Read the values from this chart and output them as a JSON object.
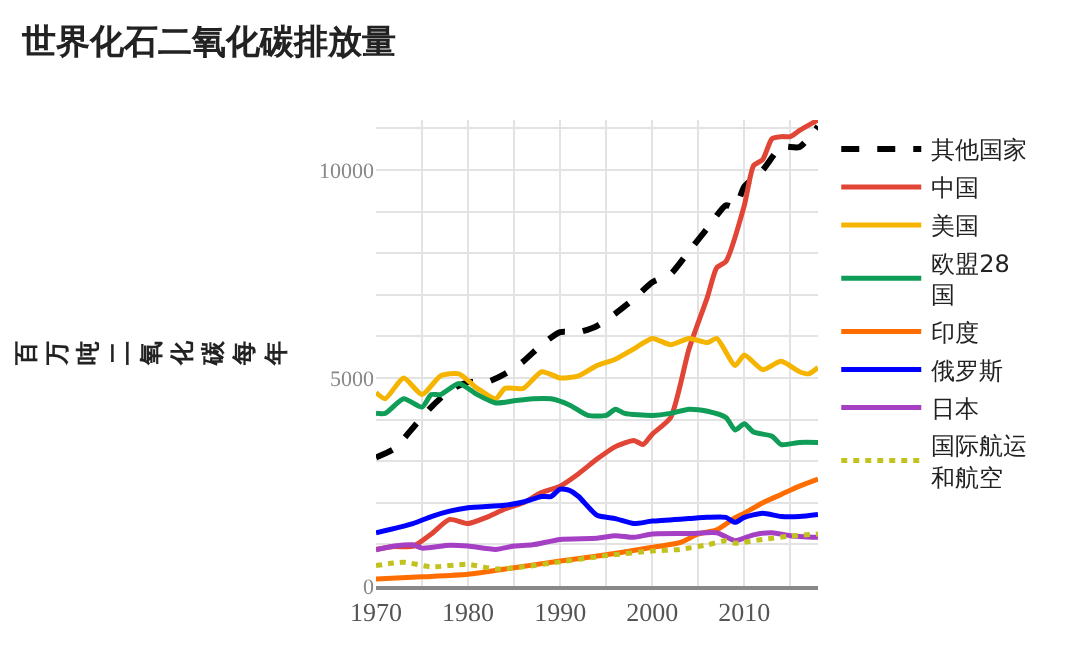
{
  "chart_data": {
    "type": "line",
    "title": "世界化石二氧化碳排放量",
    "ylabel": "百万吨二氧化碳每年",
    "xlim": [
      1970,
      2018
    ],
    "ylim": [
      0,
      11200
    ],
    "xticks": [
      1970,
      {
        "value": 1975,
        "label": null
      },
      1980,
      {
        "value": 1985,
        "label": null
      },
      1990,
      {
        "value": 1995,
        "label": null
      },
      2000,
      {
        "value": 2005,
        "label": null
      },
      2010,
      {
        "value": 2015,
        "label": null
      }
    ],
    "yticks": [
      0,
      {
        "value": 1000,
        "label": null
      },
      {
        "value": 2000,
        "label": null
      },
      {
        "value": 3000,
        "label": null
      },
      {
        "value": 4000,
        "label": null
      },
      5000,
      {
        "value": 6000,
        "label": null
      },
      {
        "value": 7000,
        "label": null
      },
      {
        "value": 8000,
        "label": null
      },
      {
        "value": 9000,
        "label": null
      },
      10000,
      {
        "value": 11000,
        "label": null
      }
    ],
    "grid": true,
    "legend": "right",
    "marker": "none",
    "series": [
      {
        "name": "其他国家",
        "color": "#000000",
        "line_style": "dashed",
        "x": [
          1970,
          1972,
          1974,
          1976,
          1978,
          1980,
          1982,
          1984,
          1986,
          1988,
          1990,
          1992,
          1994,
          1996,
          1998,
          2000,
          2002,
          2004,
          2006,
          2008,
          2009,
          2010,
          2012,
          2014,
          2016,
          2018
        ],
        "values": [
          3090,
          3300,
          3800,
          4300,
          4700,
          4900,
          4900,
          5100,
          5400,
          5800,
          6100,
          6100,
          6250,
          6550,
          6900,
          7300,
          7500,
          8050,
          8600,
          9150,
          9100,
          9600,
          10000,
          10550,
          10550,
          11050
        ]
      },
      {
        "name": "中国",
        "color": "#e04535",
        "line_style": "solid",
        "x": [
          1970,
          1972,
          1974,
          1976,
          1978,
          1980,
          1982,
          1984,
          1986,
          1988,
          1990,
          1992,
          1994,
          1996,
          1998,
          1999,
          2000,
          2002,
          2004,
          2006,
          2007,
          2008,
          2010,
          2011,
          2012,
          2013,
          2014,
          2015,
          2016,
          2018
        ],
        "values": [
          880,
          950,
          950,
          1250,
          1600,
          1500,
          1650,
          1850,
          2000,
          2250,
          2400,
          2700,
          3050,
          3350,
          3500,
          3400,
          3650,
          4050,
          5700,
          6950,
          7650,
          7800,
          9150,
          10100,
          10250,
          10750,
          10800,
          10800,
          10950,
          11200
        ]
      },
      {
        "name": "美国",
        "color": "#f5b400",
        "line_style": "solid",
        "x": [
          1970,
          1971,
          1973,
          1975,
          1977,
          1979,
          1981,
          1983,
          1984,
          1986,
          1988,
          1990,
          1992,
          1994,
          1996,
          1998,
          2000,
          2002,
          2004,
          2006,
          2007,
          2009,
          2010,
          2012,
          2014,
          2016,
          2017,
          2018
        ],
        "values": [
          4650,
          4500,
          5000,
          4600,
          5050,
          5100,
          4750,
          4500,
          4750,
          4750,
          5150,
          5000,
          5050,
          5300,
          5450,
          5700,
          5950,
          5800,
          5950,
          5850,
          5950,
          5300,
          5550,
          5200,
          5400,
          5150,
          5100,
          5250
        ]
      },
      {
        "name": "欧盟28国",
        "color": "#0f9d58",
        "line_style": "solid",
        "x": [
          1970,
          1971,
          1973,
          1975,
          1976,
          1977,
          1979,
          1981,
          1983,
          1985,
          1987,
          1989,
          1991,
          1993,
          1995,
          1996,
          1997,
          2000,
          2002,
          2004,
          2006,
          2008,
          2009,
          2010,
          2011,
          2013,
          2014,
          2016,
          2018
        ],
        "values": [
          4150,
          4150,
          4500,
          4300,
          4600,
          4600,
          4870,
          4600,
          4400,
          4450,
          4500,
          4500,
          4350,
          4100,
          4100,
          4250,
          4150,
          4100,
          4150,
          4250,
          4200,
          4050,
          3750,
          3900,
          3700,
          3600,
          3400,
          3450,
          3450
        ]
      },
      {
        "name": "印度",
        "color": "#ff6d00",
        "line_style": "solid",
        "x": [
          1970,
          1975,
          1980,
          1985,
          1990,
          1995,
          2000,
          2003,
          2005,
          2007,
          2009,
          2010,
          2012,
          2014,
          2016,
          2018
        ],
        "values": [
          170,
          220,
          280,
          440,
          600,
          750,
          930,
          1040,
          1250,
          1350,
          1640,
          1750,
          2000,
          2200,
          2400,
          2570
        ]
      },
      {
        "name": "俄罗斯",
        "color": "#0000ff",
        "line_style": "solid",
        "x": [
          1970,
          1974,
          1976,
          1978,
          1980,
          1984,
          1986,
          1988,
          1989,
          1990,
          1991,
          1992,
          1994,
          1996,
          1998,
          2000,
          2004,
          2006,
          2008,
          2009,
          2010,
          2012,
          2014,
          2016,
          2018
        ],
        "values": [
          1280,
          1500,
          1670,
          1800,
          1880,
          1940,
          2020,
          2150,
          2150,
          2330,
          2300,
          2150,
          1700,
          1620,
          1500,
          1560,
          1620,
          1650,
          1650,
          1530,
          1650,
          1750,
          1670,
          1670,
          1720
        ]
      },
      {
        "name": "日本",
        "color": "#a53fc3",
        "line_style": "solid",
        "x": [
          1970,
          1972,
          1974,
          1975,
          1978,
          1980,
          1983,
          1985,
          1987,
          1990,
          1994,
          1996,
          1998,
          2000,
          2004,
          2007,
          2009,
          2011,
          2013,
          2015,
          2018
        ],
        "values": [
          870,
          960,
          990,
          910,
          980,
          960,
          880,
          960,
          990,
          1120,
          1150,
          1210,
          1170,
          1250,
          1260,
          1280,
          1090,
          1230,
          1280,
          1210,
          1170
        ]
      },
      {
        "name": "国际航运和航空",
        "color": "#c2c21e",
        "line_style": "dotted",
        "x": [
          1970,
          1973,
          1976,
          1980,
          1983,
          1986,
          1990,
          1995,
          2000,
          2003,
          2006,
          2008,
          2009,
          2012,
          2015,
          2018
        ],
        "values": [
          490,
          570,
          460,
          520,
          410,
          460,
          580,
          730,
          840,
          880,
          990,
          1090,
          1030,
          1120,
          1200,
          1250
        ]
      }
    ]
  }
}
